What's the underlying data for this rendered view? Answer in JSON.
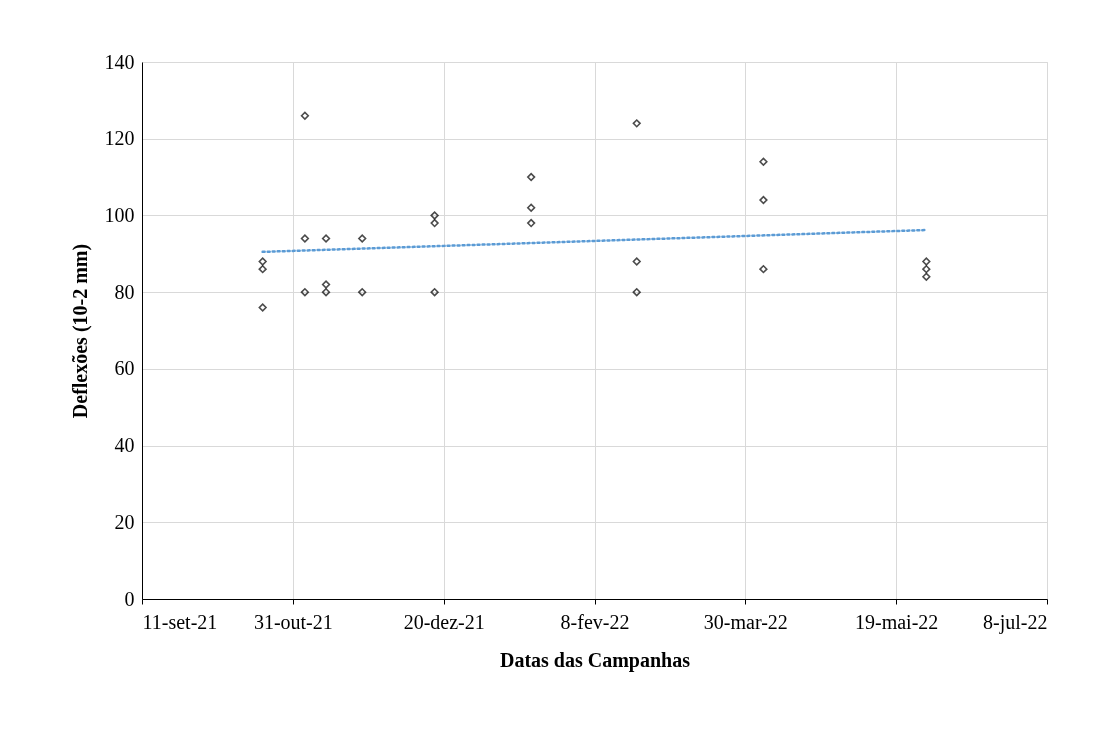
{
  "chart_data": {
    "type": "scatter",
    "xlabel": "Datas das Campanhas",
    "ylabel": "Deflexões (10-2 mm)",
    "xlim": [
      "2021-09-11",
      "2022-07-08"
    ],
    "xticks": [
      {
        "value": "2021-09-11",
        "label": "11-set-21"
      },
      {
        "value": "2021-10-31",
        "label": "31-out-21"
      },
      {
        "value": "2021-12-20",
        "label": "20-dez-21"
      },
      {
        "value": "2022-02-08",
        "label": "8-fev-22"
      },
      {
        "value": "2022-03-30",
        "label": "30-mar-22"
      },
      {
        "value": "2022-05-19",
        "label": "19-mai-22"
      },
      {
        "value": "2022-07-08",
        "label": "8-jul-22"
      }
    ],
    "ylim": [
      0,
      140
    ],
    "yticks": [
      0,
      20,
      40,
      60,
      80,
      100,
      120,
      140
    ],
    "grid": true,
    "series": [
      {
        "type": "scatter",
        "color": "#000000",
        "marker": "diamond",
        "x": [
          "2021-10-21",
          "2021-10-21",
          "2021-10-21",
          "2021-11-04",
          "2021-11-04",
          "2021-11-04",
          "2021-11-11",
          "2021-11-11",
          "2021-11-11",
          "2021-11-23",
          "2021-11-23",
          "2021-12-17",
          "2021-12-17",
          "2021-12-17",
          "2022-01-18",
          "2022-01-18",
          "2022-01-18",
          "2022-02-22",
          "2022-02-22",
          "2022-02-22",
          "2022-04-05",
          "2022-04-05",
          "2022-04-05",
          "2022-05-29",
          "2022-05-29",
          "2022-05-29"
        ],
        "values": [
          88,
          86,
          76,
          126,
          94,
          80,
          94,
          82,
          80,
          94,
          80,
          100,
          98,
          80,
          110,
          102,
          98,
          124,
          88,
          80,
          114,
          104,
          86,
          88,
          86,
          84
        ]
      },
      {
        "type": "line",
        "color": "#5b9bd5",
        "line_style": "dotted",
        "x": [
          "2021-10-21",
          "2022-05-29"
        ],
        "values": [
          90.5,
          96.2
        ]
      }
    ]
  }
}
